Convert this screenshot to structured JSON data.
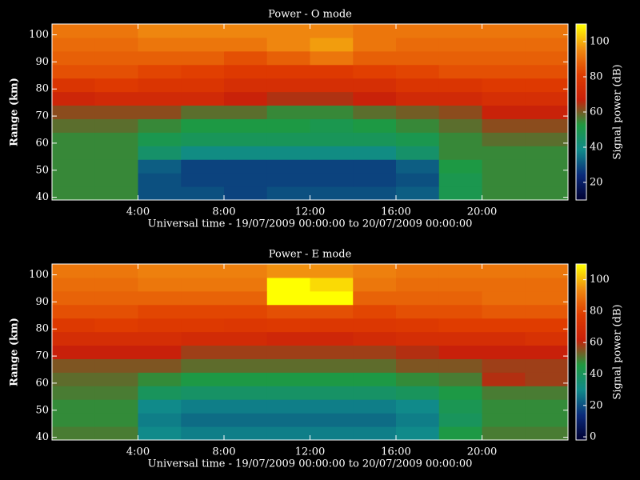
{
  "chart_data": [
    {
      "type": "heatmap",
      "title": "Power - O mode",
      "x_label": "Universal time - 19/07/2009 00:00:00 to 20/07/2009 00:00:00",
      "y_label": "Range (km)",
      "x_edges": [
        0,
        2,
        4,
        6,
        8,
        10,
        12,
        14,
        16,
        18,
        20,
        22,
        24
      ],
      "y_edges": [
        39,
        44,
        49,
        54,
        59,
        64,
        69,
        74,
        79,
        84,
        89,
        94,
        99,
        104
      ],
      "values": [
        [
          55,
          55,
          30,
          30,
          28,
          30,
          30,
          30,
          32,
          50,
          55,
          55
        ],
        [
          55,
          55,
          30,
          28,
          28,
          28,
          28,
          28,
          30,
          50,
          55,
          55
        ],
        [
          55,
          55,
          32,
          28,
          28,
          28,
          28,
          28,
          32,
          52,
          55,
          55
        ],
        [
          55,
          55,
          45,
          40,
          40,
          40,
          40,
          40,
          45,
          55,
          55,
          55
        ],
        [
          55,
          55,
          50,
          48,
          48,
          48,
          48,
          48,
          50,
          55,
          58,
          58
        ],
        [
          58,
          58,
          55,
          52,
          52,
          52,
          50,
          52,
          55,
          58,
          62,
          62
        ],
        [
          62,
          62,
          62,
          58,
          58,
          55,
          55,
          58,
          60,
          62,
          68,
          68
        ],
        [
          70,
          72,
          72,
          72,
          68,
          65,
          65,
          68,
          72,
          72,
          75,
          75
        ],
        [
          78,
          80,
          78,
          78,
          75,
          75,
          75,
          75,
          78,
          78,
          80,
          80
        ],
        [
          85,
          85,
          83,
          82,
          80,
          80,
          80,
          82,
          83,
          85,
          85,
          85
        ],
        [
          88,
          88,
          88,
          88,
          85,
          88,
          92,
          88,
          88,
          88,
          88,
          88
        ],
        [
          90,
          90,
          92,
          92,
          92,
          95,
          98,
          92,
          90,
          90,
          90,
          90
        ],
        [
          92,
          92,
          95,
          95,
          95,
          95,
          95,
          92,
          92,
          92,
          92,
          92
        ]
      ],
      "xlim": [
        0,
        24
      ],
      "xticks": [
        {
          "value": 4,
          "label": "4:00"
        },
        {
          "value": 8,
          "label": "8:00"
        },
        {
          "value": 12,
          "label": "12:00"
        },
        {
          "value": 16,
          "label": "16:00"
        },
        {
          "value": 20,
          "label": "20:00"
        }
      ],
      "ylim": [
        39,
        104
      ],
      "yticks": [
        40,
        50,
        60,
        70,
        80,
        90,
        100
      ],
      "colorbar": {
        "label": "Signal power (dB)",
        "zlim": [
          10,
          110
        ],
        "ticks": [
          20,
          40,
          60,
          80,
          100
        ]
      },
      "colormap": [
        "#000030",
        "#0a2a7a",
        "#108a8a",
        "#1e9a40",
        "#c8200a",
        "#e03c00",
        "#f08a10",
        "#ffff00"
      ]
    },
    {
      "type": "heatmap",
      "title": "Power - E mode",
      "x_label": "Universal time - 19/07/2009 00:00:00 to 20/07/2009 00:00:00",
      "y_label": "Range (km)",
      "x_edges": [
        0,
        2,
        4,
        6,
        8,
        10,
        12,
        14,
        16,
        18,
        20,
        22,
        24
      ],
      "y_edges": [
        39,
        44,
        49,
        54,
        59,
        64,
        69,
        74,
        79,
        84,
        89,
        94,
        99,
        104
      ],
      "values": [
        [
          50,
          50,
          30,
          28,
          28,
          28,
          28,
          28,
          30,
          45,
          50,
          50
        ],
        [
          48,
          48,
          28,
          25,
          25,
          25,
          25,
          25,
          28,
          40,
          48,
          48
        ],
        [
          48,
          48,
          30,
          28,
          28,
          28,
          28,
          28,
          30,
          42,
          48,
          48
        ],
        [
          50,
          50,
          40,
          38,
          38,
          38,
          38,
          38,
          40,
          45,
          50,
          50
        ],
        [
          52,
          52,
          48,
          45,
          45,
          45,
          45,
          45,
          48,
          50,
          60,
          58
        ],
        [
          55,
          55,
          55,
          52,
          52,
          52,
          52,
          52,
          55,
          55,
          58,
          58
        ],
        [
          62,
          62,
          62,
          58,
          58,
          58,
          58,
          58,
          60,
          62,
          62,
          62
        ],
        [
          70,
          70,
          70,
          68,
          68,
          66,
          66,
          68,
          70,
          70,
          70,
          72
        ],
        [
          76,
          78,
          76,
          76,
          75,
          76,
          75,
          75,
          76,
          78,
          78,
          78
        ],
        [
          82,
          82,
          80,
          80,
          80,
          82,
          82,
          80,
          82,
          82,
          84,
          84
        ],
        [
          86,
          86,
          86,
          86,
          86,
          110,
          110,
          86,
          86,
          86,
          88,
          88
        ],
        [
          88,
          88,
          90,
          90,
          90,
          110,
          105,
          90,
          88,
          88,
          88,
          88
        ],
        [
          90,
          90,
          92,
          92,
          92,
          95,
          95,
          92,
          90,
          90,
          90,
          90
        ]
      ],
      "xlim": [
        0,
        24
      ],
      "xticks": [
        {
          "value": 4,
          "label": "4:00"
        },
        {
          "value": 8,
          "label": "8:00"
        },
        {
          "value": 12,
          "label": "12:00"
        },
        {
          "value": 16,
          "label": "16:00"
        },
        {
          "value": 20,
          "label": "20:00"
        }
      ],
      "ylim": [
        39,
        104
      ],
      "yticks": [
        40,
        50,
        60,
        70,
        80,
        90,
        100
      ],
      "colorbar": {
        "label": "Signal power (dB)",
        "zlim": [
          -2,
          110
        ],
        "ticks": [
          0,
          20,
          40,
          60,
          80,
          100
        ]
      },
      "colormap": [
        "#000030",
        "#0a2a7a",
        "#108a8a",
        "#1e9a40",
        "#c8200a",
        "#e03c00",
        "#f08a10",
        "#ffff00"
      ]
    }
  ]
}
